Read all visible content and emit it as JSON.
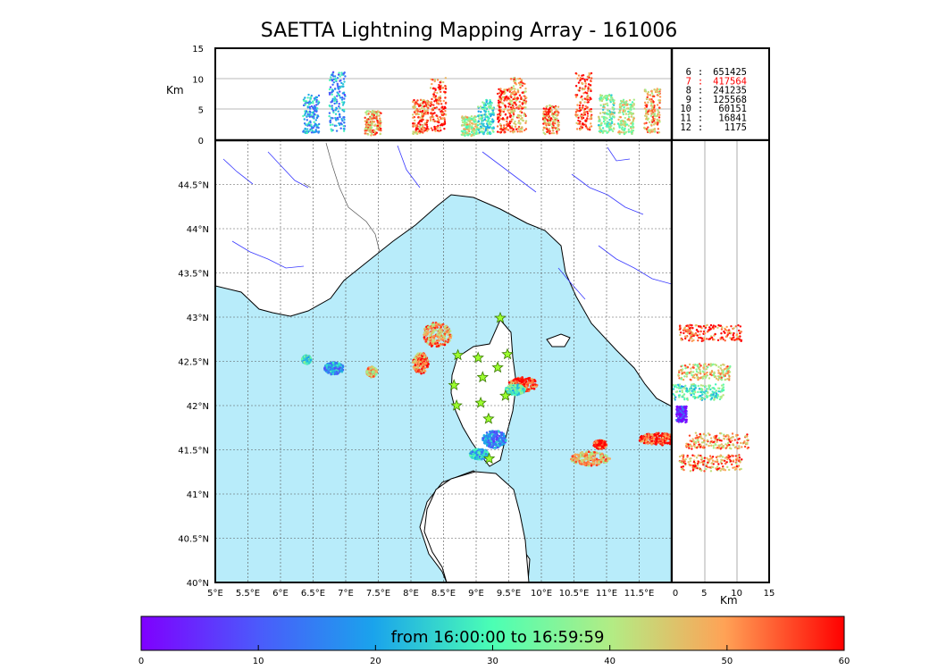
{
  "title": "SAETTA Lightning Mapping Array - 161006",
  "colorbar": {
    "label": "from 16:00:00 to 16:59:59",
    "ticks": [
      "0",
      "10",
      "20",
      "30",
      "40",
      "50",
      "60"
    ],
    "range": [
      0,
      60
    ]
  },
  "colors": {
    "sea": "#b8ecfa",
    "highlight_stat": "#ff0000",
    "star_fill": "#9cff2e",
    "border": "#000000"
  },
  "altitude_axis": {
    "label": "Km",
    "ticks": [
      "0",
      "5",
      "10",
      "15"
    ],
    "range": [
      0,
      15
    ]
  },
  "map_axes": {
    "lon_ticks": [
      "5°E",
      "5.5°E",
      "6°E",
      "6.5°E",
      "7°E",
      "7.5°E",
      "8°E",
      "8.5°E",
      "9°E",
      "9.5°E",
      "10°E",
      "10.5°E",
      "11°E",
      "11.5°E"
    ],
    "lat_ticks": [
      "40°N",
      "40.5°N",
      "41°N",
      "41.5°N",
      "42°N",
      "42.5°N",
      "43°N",
      "43.5°N",
      "44°N",
      "44.5°N"
    ],
    "lon_range": [
      5,
      12
    ],
    "lat_range": [
      40,
      45
    ]
  },
  "side_axis": {
    "label": "Km",
    "ticks": [
      "0",
      "5",
      "10",
      "15"
    ]
  },
  "stats": [
    {
      "stations": "6",
      "count": "651425",
      "highlight": false
    },
    {
      "stations": "7",
      "count": "417564",
      "highlight": true
    },
    {
      "stations": "8",
      "count": "241235",
      "highlight": false
    },
    {
      "stations": "9",
      "count": "125568",
      "highlight": false
    },
    {
      "stations": "10",
      "count": "60151",
      "highlight": false
    },
    {
      "stations": "11",
      "count": "16841",
      "highlight": false
    },
    {
      "stations": "12",
      "count": "1175",
      "highlight": false
    }
  ],
  "stations_lonlat": [
    [
      9.37,
      42.99
    ],
    [
      8.72,
      42.57
    ],
    [
      9.03,
      42.54
    ],
    [
      9.48,
      42.58
    ],
    [
      9.33,
      42.43
    ],
    [
      9.1,
      42.32
    ],
    [
      8.66,
      42.23
    ],
    [
      9.45,
      42.11
    ],
    [
      8.7,
      42.0
    ],
    [
      9.07,
      42.03
    ],
    [
      9.19,
      41.85
    ],
    [
      9.2,
      41.4
    ]
  ],
  "clusters": [
    {
      "lon": 8.4,
      "lat": 42.8,
      "rx": 0.22,
      "ry": 0.14,
      "t": 50
    },
    {
      "lon": 8.15,
      "lat": 42.48,
      "rx": 0.12,
      "ry": 0.12,
      "t": 52
    },
    {
      "lon": 6.4,
      "lat": 42.52,
      "rx": 0.07,
      "ry": 0.05,
      "t": 28
    },
    {
      "lon": 6.82,
      "lat": 42.42,
      "rx": 0.15,
      "ry": 0.07,
      "t": 18
    },
    {
      "lon": 7.4,
      "lat": 42.38,
      "rx": 0.08,
      "ry": 0.06,
      "t": 45
    },
    {
      "lon": 9.72,
      "lat": 42.24,
      "rx": 0.22,
      "ry": 0.08,
      "t": 55
    },
    {
      "lon": 9.6,
      "lat": 42.18,
      "rx": 0.15,
      "ry": 0.06,
      "t": 30
    },
    {
      "lon": 9.28,
      "lat": 41.62,
      "rx": 0.18,
      "ry": 0.1,
      "t": 15
    },
    {
      "lon": 9.05,
      "lat": 41.45,
      "rx": 0.15,
      "ry": 0.06,
      "t": 22
    },
    {
      "lon": 10.75,
      "lat": 41.4,
      "rx": 0.3,
      "ry": 0.08,
      "t": 48
    },
    {
      "lon": 10.9,
      "lat": 41.56,
      "rx": 0.1,
      "ry": 0.05,
      "t": 58
    },
    {
      "lon": 11.8,
      "lat": 41.62,
      "rx": 0.3,
      "ry": 0.07,
      "t": 57
    }
  ],
  "top_columns": [
    {
      "lon": 6.47,
      "h": 4,
      "t": 20
    },
    {
      "lon": 6.87,
      "h": 6,
      "t": 18
    },
    {
      "lon": 7.42,
      "h": 2.5,
      "t": 48
    },
    {
      "lon": 8.15,
      "h": 3.5,
      "t": 52
    },
    {
      "lon": 8.42,
      "h": 5.5,
      "t": 55
    },
    {
      "lon": 8.9,
      "h": 2,
      "t": 40
    },
    {
      "lon": 9.15,
      "h": 3.5,
      "t": 30
    },
    {
      "lon": 9.45,
      "h": 4.5,
      "t": 55
    },
    {
      "lon": 9.65,
      "h": 5.5,
      "t": 50
    },
    {
      "lon": 10.15,
      "h": 3,
      "t": 52
    },
    {
      "lon": 10.65,
      "h": 6,
      "t": 55
    },
    {
      "lon": 11.0,
      "h": 4,
      "t": 35
    },
    {
      "lon": 11.3,
      "h": 3.5,
      "t": 40
    },
    {
      "lon": 11.7,
      "h": 4.5,
      "t": 48
    }
  ],
  "side_bands": [
    {
      "lat": 42.82,
      "alt": 6,
      "spread": 6,
      "t": 55
    },
    {
      "lat": 42.38,
      "alt": 5,
      "spread": 5,
      "t": 45
    },
    {
      "lat": 42.15,
      "alt": 4,
      "spread": 5,
      "t": 30
    },
    {
      "lat": 41.9,
      "alt": 1.5,
      "spread": 1,
      "t": 5
    },
    {
      "lat": 41.6,
      "alt": 7,
      "spread": 6,
      "t": 50
    },
    {
      "lat": 41.35,
      "alt": 6,
      "spread": 6,
      "t": 52
    }
  ]
}
